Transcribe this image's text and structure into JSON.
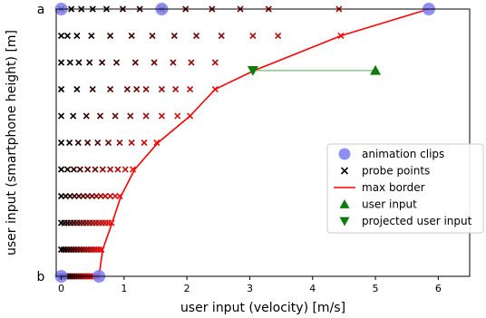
{
  "chart_data": {
    "type": "scatter",
    "xlabel": "user input (velocity) [m/s]",
    "ylabel": "user input (smartphone height) [m]",
    "xlim": [
      -0.08,
      6.5
    ],
    "ylim": [
      0,
      10
    ],
    "x_ticks": [
      0,
      1,
      2,
      3,
      4,
      5,
      6
    ],
    "y_ticks": [],
    "y_corner_labels": {
      "top": "a",
      "bottom": "b"
    },
    "legend_position": "lower-right",
    "legend": [
      {
        "key": "clips",
        "label": "animation clips",
        "marker": "circle",
        "color": "#7b7bf0"
      },
      {
        "key": "probes",
        "label": "probe points",
        "marker": "x",
        "color": "#000000"
      },
      {
        "key": "border",
        "label": "max border",
        "marker": "line",
        "color": "#ff0000"
      },
      {
        "key": "user",
        "label": "user input",
        "marker": "triangle-up",
        "color": "#0a7d0a"
      },
      {
        "key": "projected",
        "label": "projected user input",
        "marker": "triangle-down",
        "color": "#0a7d0a"
      }
    ],
    "animation_clips": [
      {
        "x": 0,
        "y": 10
      },
      {
        "x": 1.6,
        "y": 10
      },
      {
        "x": 5.85,
        "y": 10
      },
      {
        "x": 0,
        "y": 0
      },
      {
        "x": 0.6,
        "y": 0
      }
    ],
    "max_border": {
      "x": [
        0.6,
        0.66,
        0.81,
        0.95,
        1.17,
        1.54,
        2.05,
        2.45,
        3.07,
        4.45,
        5.85
      ],
      "y": [
        0,
        1,
        2,
        3,
        4,
        5,
        6,
        7,
        7.7,
        9,
        10
      ]
    },
    "probe_rows": [
      {
        "y": 0,
        "x": [
          0,
          0.03,
          0.06,
          0.09,
          0.12,
          0.15,
          0.18,
          0.21,
          0.24,
          0.27,
          0.3,
          0.33,
          0.36,
          0.39,
          0.42,
          0.45,
          0.48,
          0.51,
          0.54,
          0.57
        ]
      },
      {
        "y": 1,
        "x": [
          0,
          0.04,
          0.08,
          0.12,
          0.16,
          0.2,
          0.24,
          0.28,
          0.32,
          0.36,
          0.4,
          0.44,
          0.48,
          0.52,
          0.56,
          0.6,
          0.64
        ]
      },
      {
        "y": 2,
        "x": [
          0,
          0.05,
          0.1,
          0.15,
          0.2,
          0.25,
          0.3,
          0.35,
          0.4,
          0.45,
          0.5,
          0.55,
          0.6,
          0.65,
          0.7,
          0.75,
          0.8
        ]
      },
      {
        "y": 3,
        "x": [
          0,
          0.07,
          0.14,
          0.21,
          0.28,
          0.35,
          0.42,
          0.49,
          0.56,
          0.63,
          0.7,
          0.78,
          0.86,
          0.93
        ]
      },
      {
        "y": 4,
        "x": [
          0,
          0.1,
          0.2,
          0.3,
          0.42,
          0.54,
          0.66,
          0.78,
          0.9,
          1.02,
          1.14
        ]
      },
      {
        "y": 5,
        "x": [
          0,
          0.13,
          0.27,
          0.42,
          0.58,
          0.75,
          0.93,
          1.12,
          1.32,
          1.52
        ]
      },
      {
        "y": 6,
        "x": [
          0,
          0.19,
          0.4,
          0.62,
          0.86,
          1.1,
          1.35,
          1.6,
          1.85,
          2.05
        ]
      },
      {
        "y": 7,
        "x": [
          0,
          0.25,
          0.5,
          0.78,
          1.05,
          1.2,
          1.35,
          1.6,
          1.82,
          2.05,
          2.45
        ]
      },
      {
        "y": 8,
        "x": [
          0,
          0.14,
          0.28,
          0.45,
          0.65,
          0.88,
          1.18,
          1.48,
          1.78,
          2.07,
          2.45
        ]
      },
      {
        "y": 9,
        "x": [
          0,
          0.1,
          0.25,
          0.48,
          0.78,
          1.12,
          1.45,
          1.8,
          2.15,
          2.55,
          3.05,
          3.45,
          4.45
        ]
      },
      {
        "y": 10,
        "x": [
          0,
          0.16,
          0.32,
          0.5,
          0.72,
          0.98,
          1.25,
          1.6,
          1.98,
          2.4,
          2.85,
          3.3,
          4.42
        ]
      }
    ],
    "user_input": {
      "x": 5.0,
      "y": 7.7
    },
    "projected_user_input": {
      "x": 3.05,
      "y": 7.7
    }
  }
}
